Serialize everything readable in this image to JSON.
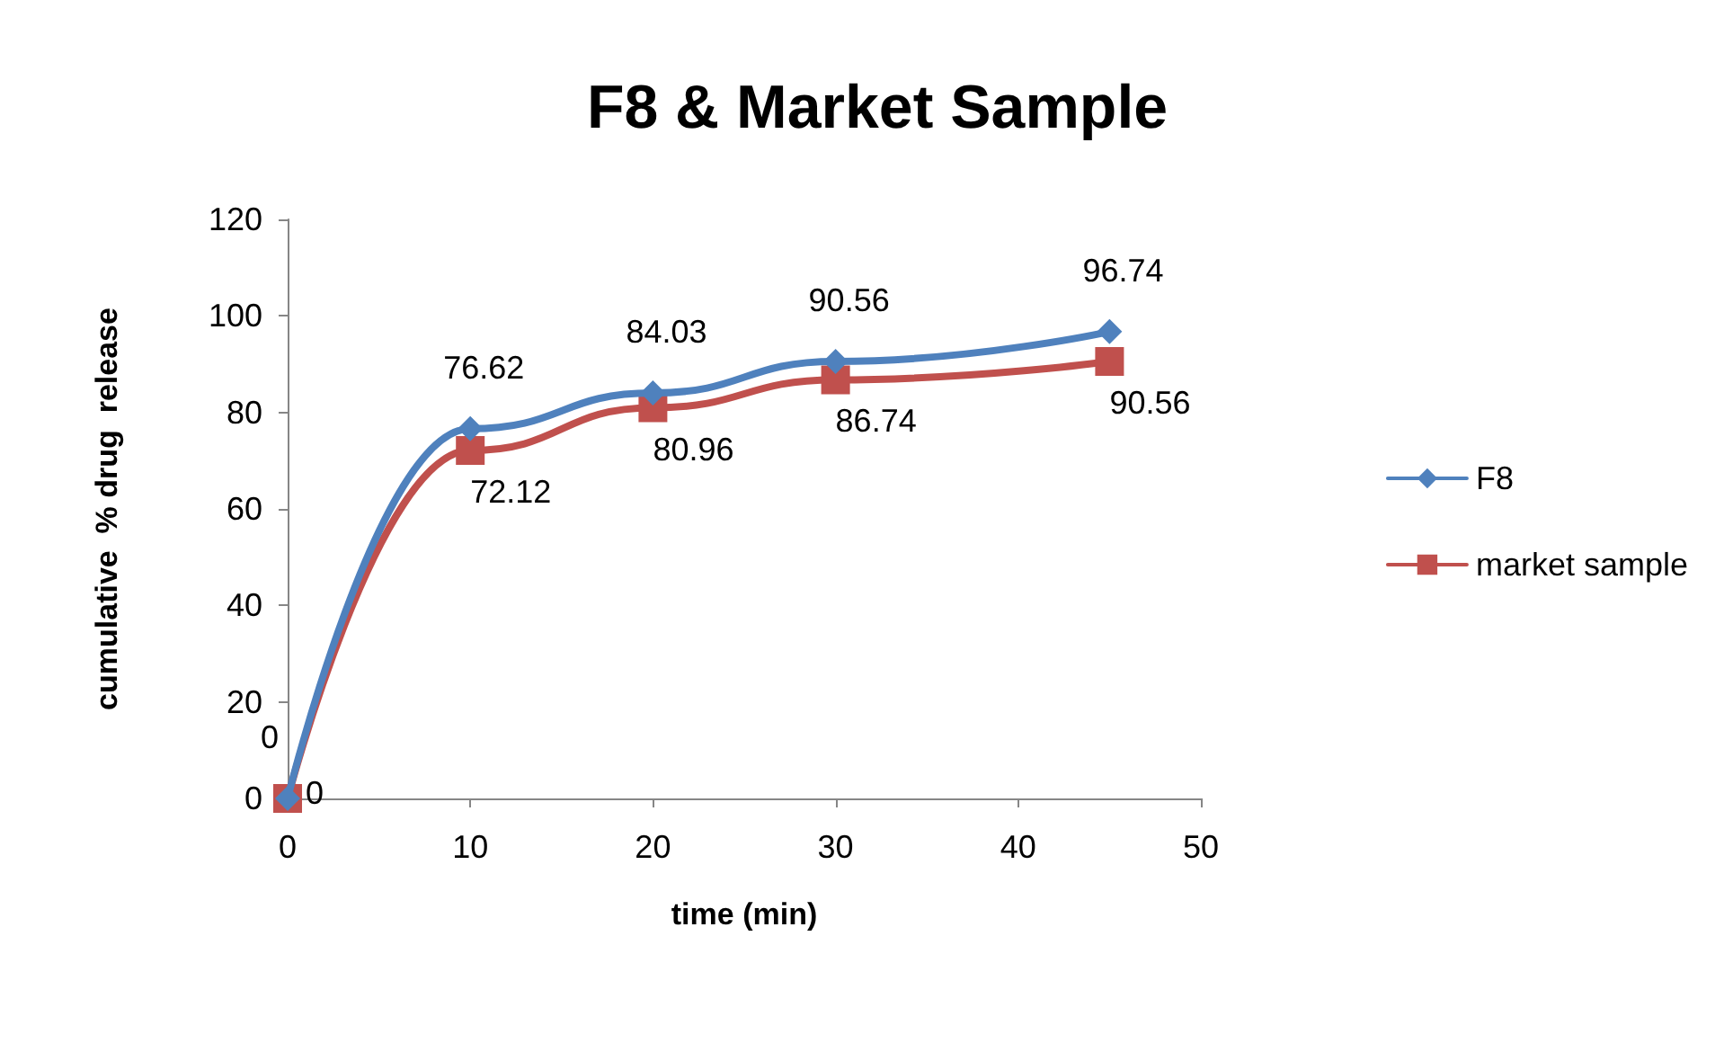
{
  "chart_data": {
    "type": "line",
    "title": "F8 & Market Sample",
    "xlabel": "time (min)",
    "ylabel": "cumulative  % drug  release",
    "x": [
      0,
      10,
      20,
      30,
      45
    ],
    "series": [
      {
        "name": "F8",
        "color": "#4f81bd",
        "marker": "diamond",
        "values": [
          0,
          76.62,
          84.03,
          90.56,
          96.74
        ]
      },
      {
        "name": "market sample",
        "color": "#c0504d",
        "marker": "square",
        "values": [
          0,
          72.12,
          80.96,
          86.74,
          90.56
        ]
      }
    ],
    "xlim": [
      0,
      50
    ],
    "xticks": [
      0,
      10,
      20,
      30,
      40,
      50
    ],
    "ylim": [
      0,
      120
    ],
    "yticks": [
      0,
      20,
      40,
      60,
      80,
      100,
      120
    ],
    "grid": false,
    "legend": "right",
    "data_labels": true
  }
}
